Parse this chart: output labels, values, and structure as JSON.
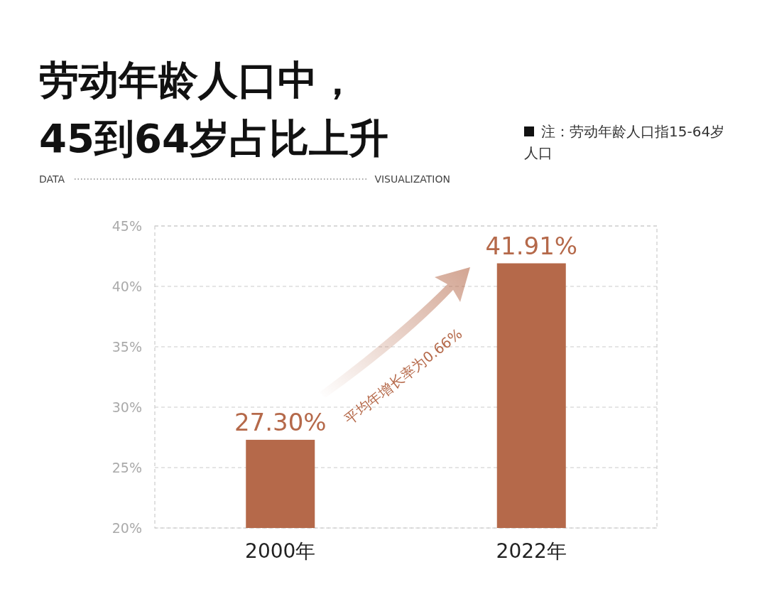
{
  "chart_data": {
    "type": "bar",
    "title": "劳动年龄人口中，\n45到64岁占比上升",
    "annotations": [
      "注：劳动年龄人口指15-64岁人口",
      "DATA",
      "VISUALIZATION",
      "平均年增长率为0.66%"
    ],
    "categories": [
      "2000年",
      "2022年"
    ],
    "values": [
      27.3,
      41.91
    ],
    "value_labels": [
      "27.30%",
      "41.91%"
    ],
    "color": "#b5694a",
    "ylim": [
      20,
      45
    ],
    "yticks": [
      {
        "value": 20,
        "label": "20%"
      },
      {
        "value": 25,
        "label": "25%"
      },
      {
        "value": 30,
        "label": "30%"
      },
      {
        "value": 35,
        "label": "35%"
      },
      {
        "value": 40,
        "label": "40%"
      },
      {
        "value": 45,
        "label": "45%"
      }
    ],
    "grid": "y"
  }
}
